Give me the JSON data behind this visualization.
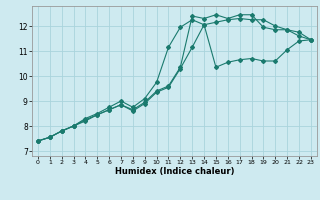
{
  "xlabel": "Humidex (Indice chaleur)",
  "ylabel": "",
  "background_color": "#ceeaf0",
  "grid_color": "#aad4dc",
  "line_color": "#1a7a6e",
  "xlim": [
    -0.5,
    23.5
  ],
  "ylim": [
    6.8,
    12.8
  ],
  "x_ticks": [
    0,
    1,
    2,
    3,
    4,
    5,
    6,
    7,
    8,
    9,
    10,
    11,
    12,
    13,
    14,
    15,
    16,
    17,
    18,
    19,
    20,
    21,
    22,
    23
  ],
  "y_ticks": [
    7,
    8,
    9,
    10,
    11,
    12
  ],
  "line1_x": [
    0,
    1,
    2,
    3,
    4,
    5,
    6,
    7,
    8,
    9,
    10,
    11,
    12,
    13,
    14,
    15,
    16,
    17,
    18,
    19,
    20,
    21,
    22,
    23
  ],
  "line1_y": [
    7.4,
    7.55,
    7.8,
    8.0,
    8.2,
    8.45,
    8.65,
    8.85,
    8.6,
    8.9,
    9.35,
    9.55,
    10.3,
    11.15,
    12.05,
    10.35,
    10.55,
    10.65,
    10.7,
    10.6,
    10.6,
    11.05,
    11.4,
    11.45
  ],
  "line2_x": [
    0,
    1,
    2,
    3,
    4,
    5,
    6,
    7,
    8,
    9,
    10,
    11,
    12,
    13,
    14,
    15,
    16,
    17,
    18,
    19,
    20,
    21,
    22,
    23
  ],
  "line2_y": [
    7.4,
    7.55,
    7.8,
    8.0,
    8.3,
    8.5,
    8.75,
    9.0,
    8.75,
    9.1,
    9.75,
    11.15,
    11.95,
    12.25,
    12.05,
    12.15,
    12.25,
    12.3,
    12.25,
    12.25,
    12.0,
    11.85,
    11.75,
    11.45
  ],
  "line3_x": [
    0,
    1,
    2,
    3,
    4,
    5,
    6,
    7,
    8,
    9,
    10,
    11,
    12,
    13,
    14,
    15,
    16,
    17,
    18,
    19,
    20,
    21,
    22,
    23
  ],
  "line3_y": [
    7.4,
    7.55,
    7.8,
    8.0,
    8.25,
    8.45,
    8.65,
    8.85,
    8.65,
    8.95,
    9.4,
    9.6,
    10.35,
    12.4,
    12.3,
    12.45,
    12.3,
    12.45,
    12.45,
    11.95,
    11.85,
    11.85,
    11.6,
    11.45
  ]
}
